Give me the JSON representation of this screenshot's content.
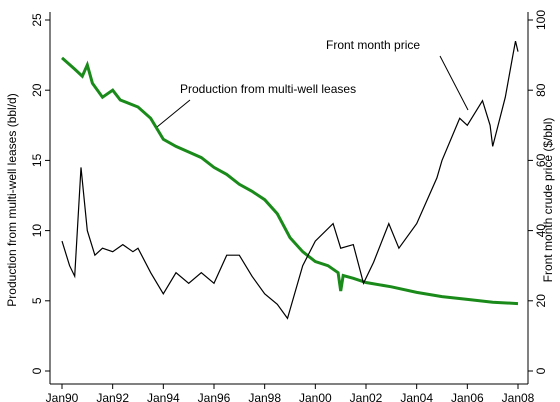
{
  "chart_data": {
    "type": "line",
    "ylabel": "Production from multi-well leases (bbl/d)",
    "y2label": "Front month crude price ($/bbl)",
    "annotations": [
      "Front month price",
      "Production from multi-well leases"
    ],
    "xlim": [
      1990,
      2008
    ],
    "xticks": [
      {
        "value": 1990,
        "label": "Jan90"
      },
      {
        "value": 1992,
        "label": "Jan92"
      },
      {
        "value": 1994,
        "label": "Jan94"
      },
      {
        "value": 1996,
        "label": "Jan96"
      },
      {
        "value": 1998,
        "label": "Jan98"
      },
      {
        "value": 2000,
        "label": "Jan00"
      },
      {
        "value": 2002,
        "label": "Jan02"
      },
      {
        "value": 2004,
        "label": "Jan04"
      },
      {
        "value": 2006,
        "label": "Jan06"
      },
      {
        "value": 2008,
        "label": "Jan08"
      }
    ],
    "ylim": [
      0,
      25
    ],
    "yticks": [
      0,
      5,
      10,
      15,
      20,
      25
    ],
    "y2lim": [
      0,
      100
    ],
    "y2ticks": [
      0,
      20,
      40,
      60,
      80,
      100
    ],
    "series": [
      {
        "name": "Production from multi-well leases",
        "color": "#1a8a1a",
        "axis": "y",
        "x": [
          1990.0,
          1990.5,
          1990.8,
          1991.0,
          1991.2,
          1991.6,
          1992.0,
          1992.3,
          1993.0,
          1993.5,
          1994.0,
          1994.5,
          1995.0,
          1995.5,
          1996.0,
          1996.5,
          1997.0,
          1997.5,
          1998.0,
          1998.5,
          1999.0,
          1999.5,
          2000.0,
          2000.5,
          2000.9,
          2001.0,
          2001.1,
          2001.5,
          2002.0,
          2003.0,
          2004.0,
          2005.0,
          2006.0,
          2007.0,
          2008.0
        ],
        "values": [
          22.3,
          21.5,
          21.0,
          21.8,
          20.5,
          19.5,
          20.0,
          19.3,
          18.8,
          18.0,
          16.5,
          16.0,
          15.6,
          15.2,
          14.5,
          14.0,
          13.3,
          12.8,
          12.2,
          11.2,
          9.5,
          8.5,
          7.8,
          7.5,
          7.0,
          5.7,
          6.8,
          6.6,
          6.3,
          6.0,
          5.6,
          5.3,
          5.1,
          4.9,
          4.8
        ]
      },
      {
        "name": "Front month price",
        "color": "#000000",
        "axis": "y2",
        "x": [
          1990.0,
          1990.3,
          1990.5,
          1990.75,
          1991.0,
          1991.3,
          1991.6,
          1992.0,
          1992.4,
          1992.8,
          1993.0,
          1993.5,
          1994.0,
          1994.5,
          1995.0,
          1995.5,
          1996.0,
          1996.5,
          1997.0,
          1997.5,
          1998.0,
          1998.5,
          1998.9,
          1999.5,
          2000.0,
          2000.7,
          2001.0,
          2001.5,
          2001.9,
          2002.3,
          2002.9,
          2003.3,
          2004.0,
          2004.8,
          2005.0,
          2005.7,
          2006.0,
          2006.6,
          2006.9,
          2007.0,
          2007.5,
          2007.8,
          2007.9,
          2008.0
        ],
        "values": [
          37,
          30,
          27,
          58,
          40,
          33,
          35,
          34,
          36,
          34,
          35,
          28,
          22,
          28,
          25,
          28,
          25,
          33,
          33,
          27,
          22,
          19,
          15,
          30,
          37,
          42,
          35,
          36,
          25,
          31,
          42,
          35,
          42,
          55,
          60,
          72,
          70,
          77,
          70,
          64,
          78,
          90,
          94,
          91
        ]
      }
    ]
  }
}
